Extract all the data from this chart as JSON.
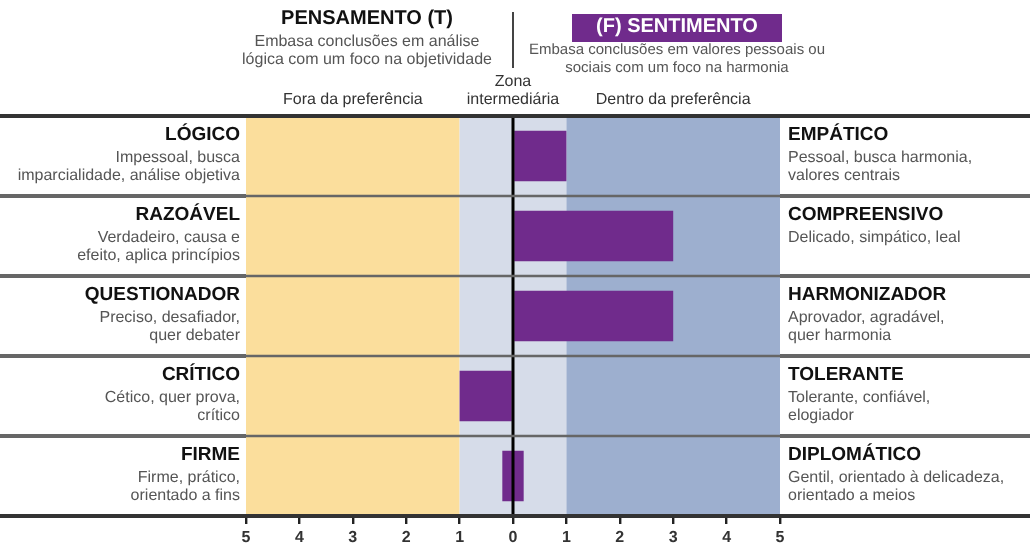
{
  "chart_data": {
    "type": "bar",
    "orientation": "horizontal",
    "title": "PENSAMENTO (T)",
    "subtitle": "Embasa conclusões em análise\nlógica com um foco na objetividade",
    "annotations": [
      "(F) SENTIMENTO",
      "Embasa conclusões em valores pessoais ou\nsociais com um foco na harmonia"
    ],
    "categories": [
      "LÓGICO\nImpessoal, busca\nimparcialidade, análise objetiva",
      "RAZOÁVEL\nVerdadeiro, causa e\nefeito, aplica princípios",
      "QUESTIONADOR\nPreciso, desafiador,\nquer debater",
      "CRÍTICO\nCético, quer prova,\ncrítico",
      "FIRME\nFirme, prático,\norientado a fins"
    ],
    "y2_categories": [
      "EMPÁTICO\nPessoal, busca harmonia,\nvalores centrais",
      "COMPREENSIVO\nDelicado, simpático, leal",
      "HARMONIZADOR\nAprovador, agradável,\nquer harmonia",
      "TOLERANTE\nTolerante, confiável,\nelogiador",
      "DIPLOMÁTICO\nGentil, orientado à delicadeza,\norientado a meios"
    ],
    "values": [
      1,
      3,
      3,
      -1,
      0.4
    ],
    "base": [
      0,
      0,
      0,
      0,
      -0.2
    ],
    "color": "#702b8c",
    "xlim": [
      -5,
      5
    ],
    "xticks": [
      {
        "value": -5,
        "label": "5"
      },
      {
        "value": -4,
        "label": "4"
      },
      {
        "value": -3,
        "label": "3"
      },
      {
        "value": -2,
        "label": "2"
      },
      {
        "value": -1,
        "label": "1"
      },
      0,
      1,
      2,
      3,
      4,
      5
    ],
    "bands": [
      {
        "axis": "x",
        "from": -5,
        "to": -1,
        "label": "Fora da preferência",
        "color": "#fbde9c"
      },
      {
        "axis": "x",
        "from": -1,
        "to": 1,
        "label": "Zona\nintermediária",
        "color": "#d6dce9"
      },
      {
        "axis": "x",
        "from": 1,
        "to": 5,
        "label": "Dentro da preferência",
        "color": "#9dafcf"
      }
    ],
    "ref_lines": [
      {
        "axis": "x",
        "value": 0,
        "color": "#000000"
      }
    ],
    "grid": "y",
    "legend": false
  }
}
